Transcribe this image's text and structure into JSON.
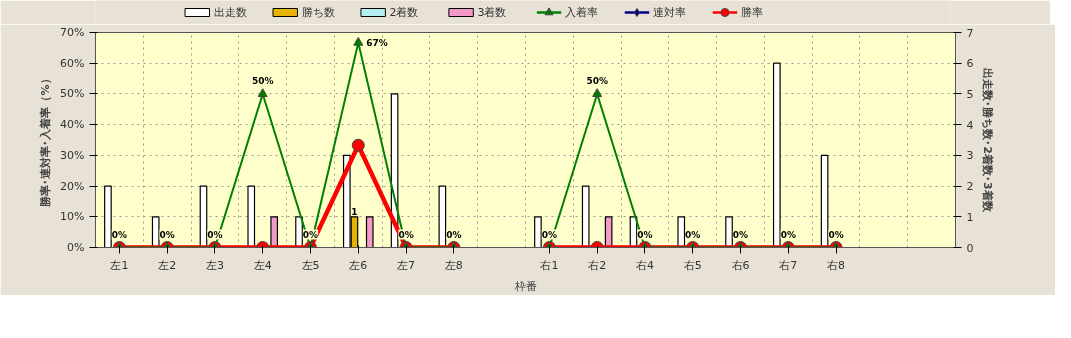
{
  "chart_data": {
    "type": "bar",
    "xlabel": "枠番",
    "ylabel": "勝率･連対率･入着率（%）",
    "y2label": "出走数･勝ち数･2着数･3着数",
    "categories": [
      "左1",
      "左2",
      "左3",
      "左4",
      "左5",
      "左6",
      "左7",
      "左8",
      null,
      "右1",
      "右2",
      "右4",
      "右5",
      "右6",
      "右7",
      "右8",
      null,
      null
    ],
    "series": [
      {
        "name": "出走数",
        "axis": "y2",
        "color": "#ffffff",
        "values": [
          2,
          1,
          2,
          2,
          1,
          3,
          5,
          2,
          null,
          1,
          2,
          1,
          1,
          1,
          6,
          3,
          null,
          null
        ]
      },
      {
        "name": "勝ち数",
        "axis": "y2",
        "color": "#e6b400",
        "values": [
          0,
          0,
          0,
          0,
          0,
          1,
          0,
          0,
          null,
          0,
          0,
          0,
          0,
          0,
          0,
          0,
          null,
          null
        ],
        "value_labels": [
          null,
          null,
          null,
          null,
          null,
          "1",
          null,
          null,
          null,
          null,
          null,
          null,
          null,
          null,
          null,
          null,
          null,
          null
        ]
      },
      {
        "name": "2着数",
        "axis": "y2",
        "color": "#b4eef0",
        "values": [
          0,
          0,
          0,
          0,
          0,
          0,
          0,
          0,
          null,
          0,
          0,
          0,
          0,
          0,
          0,
          0,
          null,
          null
        ]
      },
      {
        "name": "3着数",
        "axis": "y2",
        "color": "#f49ac8",
        "values": [
          0,
          0,
          0,
          1,
          0,
          1,
          0,
          0,
          null,
          0,
          1,
          0,
          0,
          0,
          0,
          0,
          null,
          null
        ]
      },
      {
        "name": "入着率",
        "type": "line",
        "color": "#008000",
        "marker": "triangle",
        "values": [
          0,
          0,
          0,
          50,
          0,
          66.7,
          0,
          0,
          null,
          0,
          50,
          0,
          0,
          0,
          0,
          0,
          null,
          null
        ],
        "value_labels": [
          "0%",
          "0%",
          "0%",
          "50%",
          "0%",
          "67%",
          "0%",
          "0%",
          null,
          "0%",
          "50%",
          "0%",
          "0%",
          "0%",
          "0%",
          "0%",
          null,
          null
        ]
      },
      {
        "name": "連対率",
        "type": "line",
        "color": "#000080",
        "marker": "diamond",
        "values": [
          null,
          null,
          null,
          null,
          null,
          null,
          null,
          null,
          null,
          null,
          null,
          null,
          null,
          null,
          null,
          null,
          null,
          null
        ]
      },
      {
        "name": "勝率",
        "type": "line",
        "color": "#ff0000",
        "marker": "circle",
        "values": [
          0,
          0,
          0,
          0,
          0,
          33.3,
          0,
          0,
          null,
          0,
          0,
          0,
          0,
          0,
          0,
          0,
          null,
          null
        ]
      }
    ],
    "ylim": [
      0,
      70
    ],
    "yticks": [
      {
        "value": 0,
        "label": "0%"
      },
      {
        "value": 10,
        "label": "10%"
      },
      {
        "value": 20,
        "label": "20%"
      },
      {
        "value": 30,
        "label": "30%"
      },
      {
        "value": 40,
        "label": "40%"
      },
      {
        "value": 50,
        "label": "50%"
      },
      {
        "value": 60,
        "label": "60%"
      },
      {
        "value": 70,
        "label": "70%"
      }
    ],
    "y2lim": [
      0,
      7
    ],
    "y2ticks": [
      0,
      1,
      2,
      3,
      4,
      5,
      6,
      7
    ],
    "grid": true,
    "legend": "top",
    "line_style": "solid"
  }
}
